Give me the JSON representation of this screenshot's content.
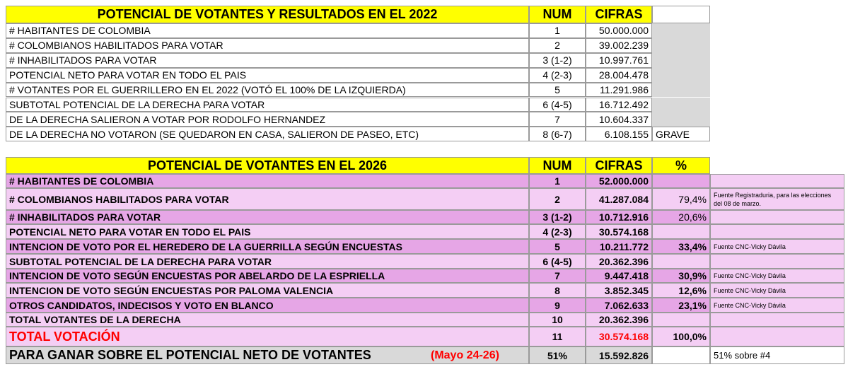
{
  "table_2022": {
    "headers": [
      "POTENCIAL DE VOTANTES Y RESULTADOS EN EL 2022",
      "NUM",
      "CIFRAS"
    ],
    "rows": [
      {
        "label": "# HABITANTES DE COLOMBIA",
        "num": "1",
        "cifras": "50.000.000"
      },
      {
        "label": "# COLOMBIANOS HABILITADOS PARA VOTAR",
        "num": "2",
        "cifras": "39.002.239"
      },
      {
        "label": "# INHABILITADOS PARA VOTAR",
        "num": "3 (1-2)",
        "cifras": "10.997.761"
      },
      {
        "label": "POTENCIAL NETO PARA VOTAR EN TODO EL PAIS",
        "num": "4 (2-3)",
        "cifras": "28.004.478"
      },
      {
        "label": "# VOTANTES POR EL GUERRILLERO EN EL 2022 (VOTÓ EL 100% DE LA IZQUIERDA)",
        "num": "5",
        "cifras": "11.291.986"
      },
      {
        "label": "SUBTOTAL POTENCIAL DE LA DERECHA PARA VOTAR",
        "num": "6 (4-5)",
        "cifras": "16.712.492"
      },
      {
        "label": "DE LA DERECHA SALIERON A VOTAR POR RODOLFO HERNANDEZ",
        "num": "7",
        "cifras": "10.604.337"
      },
      {
        "label": "DE LA DERECHA NO VOTARON (SE QUEDARON EN CASA, SALIERON DE PASEO, ETC)",
        "num": "8 (6-7)",
        "cifras": "6.108.155",
        "extra": "GRAVE"
      }
    ]
  },
  "table_2026": {
    "headers": [
      "POTENCIAL DE VOTANTES EN EL 2026",
      "NUM",
      "CIFRAS",
      "%"
    ],
    "rows": [
      {
        "label": "# HABITANTES DE COLOMBIA",
        "num": "1",
        "cifras": "52.000.000"
      },
      {
        "label": "# COLOMBIANOS HABILITADOS PARA VOTAR",
        "num": "2",
        "cifras": "41.287.084",
        "pct": "79,4%",
        "note": "Fuente Registraduria, para las elecciones del 08 de marzo."
      },
      {
        "label": "# INHABILITADOS PARA VOTAR",
        "num": "3 (1-2)",
        "cifras": "10.712.916",
        "pct": "20,6%"
      },
      {
        "label": "POTENCIAL NETO PARA VOTAR EN TODO EL PAIS",
        "num": "4 (2-3)",
        "cifras": "30.574.168"
      },
      {
        "label": "INTENCION DE VOTO POR EL HEREDERO DE LA GUERRILLA SEGÚN ENCUESTAS",
        "num": "5",
        "cifras": "10.211.772",
        "pct": "33,4%",
        "note": "Fuente CNC-Vicky Dávila"
      },
      {
        "label": "SUBTOTAL POTENCIAL DE LA DERECHA PARA VOTAR",
        "num": "6 (4-5)",
        "cifras": "20.362.396"
      },
      {
        "label": "INTENCION DE VOTO SEGÚN ENCUESTAS POR ABELARDO DE LA ESPRIELLA",
        "num": "7",
        "cifras": "9.447.418",
        "pct": "30,9%",
        "note": "Fuente CNC-Vicky Dávila"
      },
      {
        "label": "INTENCION DE VOTO SEGÚN ENCUESTAS POR PALOMA VALENCIA",
        "num": "8",
        "cifras": "3.852.345",
        "pct": "12,6%",
        "note": "Fuente CNC-Vicky Dávila"
      },
      {
        "label": "OTROS CANDIDATOS, INDECISOS Y VOTO EN BLANCO",
        "num": "9",
        "cifras": "7.062.633",
        "pct": "23,1%",
        "note": "Fuente CNC-Vicky Dávila"
      },
      {
        "label": "TOTAL VOTANTES DE LA DERECHA",
        "num": "10",
        "cifras": "20.362.396"
      },
      {
        "label": "TOTAL VOTACIÓN",
        "num": "11",
        "cifras": "30.574.168",
        "pct": "100,0%"
      },
      {
        "label": "PARA GANAR SOBRE EL POTENCIAL NETO DE VOTANTES",
        "extra": "(Mayo 24-26)",
        "num": "51%",
        "cifras": "15.592.826",
        "note": "51% sobre #4"
      }
    ]
  }
}
